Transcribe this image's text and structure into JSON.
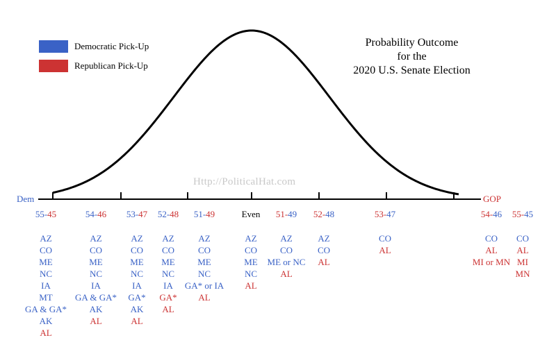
{
  "chart_data": {
    "type": "area",
    "title": [
      "Probability Outcome",
      "for the",
      "2020 U.S. Senate Election"
    ],
    "x_end_labels": {
      "left": "Dem",
      "right": "GOP"
    },
    "watermark": "Http://PoliticalHat.com",
    "legend": [
      {
        "label": "Democratic Pick-Up",
        "color": "#3a62c6"
      },
      {
        "label": "Republican Pick-Up",
        "color": "#cc3333"
      }
    ],
    "colors": {
      "dem": "#3a62c6",
      "gop": "#cc3333",
      "neutral": "#000000"
    },
    "outcomes": [
      {
        "dem": "55",
        "gop": "45",
        "states": [
          {
            "t": "AZ",
            "p": "D"
          },
          {
            "t": "CO",
            "p": "D"
          },
          {
            "t": "ME",
            "p": "D"
          },
          {
            "t": "NC",
            "p": "D"
          },
          {
            "t": "IA",
            "p": "D"
          },
          {
            "t": "MT",
            "p": "D"
          },
          {
            "t": "GA & GA*",
            "p": "D"
          },
          {
            "t": "AK",
            "p": "D"
          },
          {
            "t": "AL",
            "p": "R"
          }
        ]
      },
      {
        "dem": "54",
        "gop": "46",
        "states": [
          {
            "t": "AZ",
            "p": "D"
          },
          {
            "t": "CO",
            "p": "D"
          },
          {
            "t": "ME",
            "p": "D"
          },
          {
            "t": "NC",
            "p": "D"
          },
          {
            "t": "IA",
            "p": "D"
          },
          {
            "t": "GA & GA*",
            "p": "D"
          },
          {
            "t": "AK",
            "p": "D"
          },
          {
            "t": "AL",
            "p": "R"
          }
        ]
      },
      {
        "dem": "53",
        "gop": "47",
        "states": [
          {
            "t": "AZ",
            "p": "D"
          },
          {
            "t": "CO",
            "p": "D"
          },
          {
            "t": "ME",
            "p": "D"
          },
          {
            "t": "NC",
            "p": "D"
          },
          {
            "t": "IA",
            "p": "D"
          },
          {
            "t": "GA*",
            "p": "D"
          },
          {
            "t": "AK",
            "p": "D"
          },
          {
            "t": "AL",
            "p": "R"
          }
        ]
      },
      {
        "dem": "52",
        "gop": "48",
        "states": [
          {
            "t": "AZ",
            "p": "D"
          },
          {
            "t": "CO",
            "p": "D"
          },
          {
            "t": "ME",
            "p": "D"
          },
          {
            "t": "NC",
            "p": "D"
          },
          {
            "t": "IA",
            "p": "D"
          },
          {
            "t": "GA*",
            "p": "R"
          },
          {
            "t": "AL",
            "p": "R"
          }
        ]
      },
      {
        "dem": "51",
        "gop": "49",
        "states": [
          {
            "t": "AZ",
            "p": "D"
          },
          {
            "t": "CO",
            "p": "D"
          },
          {
            "t": "ME",
            "p": "D"
          },
          {
            "t": "NC",
            "p": "D"
          },
          {
            "t": "GA* or IA",
            "p": "D"
          },
          {
            "t": "AL",
            "p": "R"
          }
        ]
      },
      {
        "label": "Even",
        "states": [
          {
            "t": "AZ",
            "p": "D"
          },
          {
            "t": "CO",
            "p": "D"
          },
          {
            "t": "ME",
            "p": "D"
          },
          {
            "t": "NC",
            "p": "D"
          },
          {
            "t": "AL",
            "p": "R"
          }
        ]
      },
      {
        "gop": "51",
        "dem": "49",
        "states": [
          {
            "t": "AZ",
            "p": "D"
          },
          {
            "t": "CO",
            "p": "D"
          },
          {
            "t": "ME or NC",
            "p": "D"
          },
          {
            "t": "AL",
            "p": "R"
          }
        ]
      },
      {
        "gop": "52",
        "dem": "48",
        "states": [
          {
            "t": "AZ",
            "p": "D"
          },
          {
            "t": "CO",
            "p": "D"
          },
          {
            "t": "AL",
            "p": "R"
          }
        ]
      },
      {
        "gop": "53",
        "dem": "47",
        "states": [
          {
            "t": "CO",
            "p": "D"
          },
          {
            "t": "AL",
            "p": "R"
          }
        ]
      },
      {
        "gop": "54",
        "dem": "46",
        "states": [
          {
            "t": "CO",
            "p": "D"
          },
          {
            "t": "AL",
            "p": "R"
          },
          {
            "t": "MI or MN",
            "p": "R"
          }
        ]
      },
      {
        "gop": "55",
        "dem": "45",
        "states": [
          {
            "t": "CO",
            "p": "D"
          },
          {
            "t": "AL",
            "p": "R"
          },
          {
            "t": "MI",
            "p": "R"
          },
          {
            "t": "MN",
            "p": "R"
          }
        ]
      }
    ]
  }
}
